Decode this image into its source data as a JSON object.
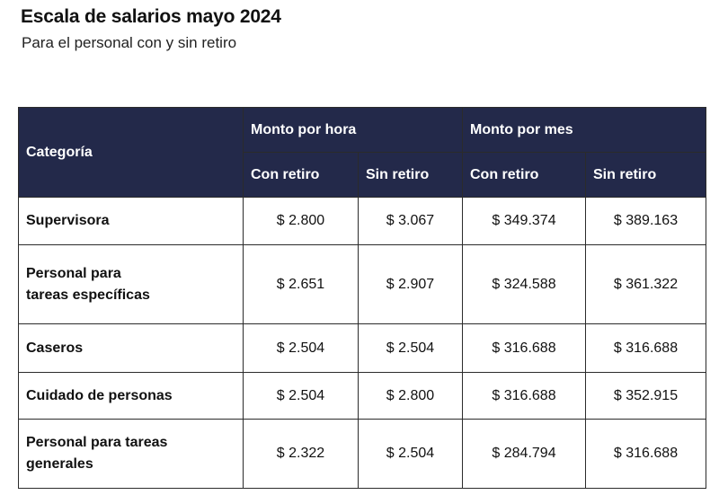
{
  "title": "Escala de salarios mayo 2024",
  "subtitle": "Para el personal con y sin retiro",
  "table": {
    "header": {
      "categoria": "Categoría",
      "monto_hora": "Monto por hora",
      "monto_mes": "Monto por mes",
      "hora_con": "Con retiro",
      "hora_sin": "Sin retiro",
      "mes_con": "Con retiro",
      "mes_sin": "Sin retiro"
    },
    "rows": [
      {
        "categoria_line1": "Supervisora",
        "categoria_line2": "",
        "hora_con": "$ 2.800",
        "hora_sin": "$ 3.067",
        "mes_con": "$ 349.374",
        "mes_sin": "$ 389.163"
      },
      {
        "categoria_line1": "Personal para",
        "categoria_line2": "tareas específicas",
        "hora_con": "$ 2.651",
        "hora_sin": "$ 2.907",
        "mes_con": "$ 324.588",
        "mes_sin": "$ 361.322"
      },
      {
        "categoria_line1": "Caseros",
        "categoria_line2": "",
        "hora_con": "$ 2.504",
        "hora_sin": "$ 2.504",
        "mes_con": "$ 316.688",
        "mes_sin": "$ 316.688"
      },
      {
        "categoria_line1": "Cuidado de personas",
        "categoria_line2": "",
        "hora_con": "$ 2.504",
        "hora_sin": "$ 2.800",
        "mes_con": "$ 316.688",
        "mes_sin": "$ 352.915"
      },
      {
        "categoria_line1": "Personal para tareas",
        "categoria_line2": "generales",
        "hora_con": "$ 2.322",
        "hora_sin": "$ 2.504",
        "mes_con": "$ 284.794",
        "mes_sin": "$ 316.688"
      }
    ]
  },
  "colors": {
    "header_background": "#23294a",
    "header_text": "#ffffff",
    "border": "#2b2b2b"
  }
}
